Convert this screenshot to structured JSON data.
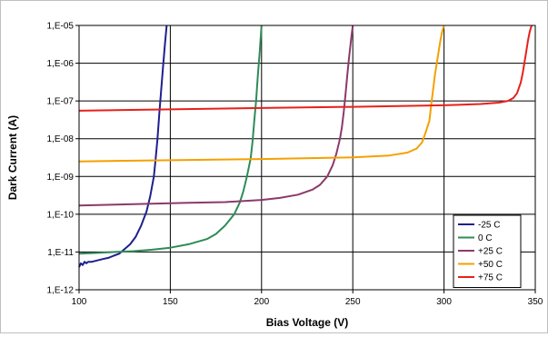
{
  "chart_data": {
    "type": "line",
    "title": "",
    "xlabel": "Bias Voltage (V)",
    "ylabel": "Dark Current (A)",
    "xlim": [
      100,
      350
    ],
    "ylim": [
      1e-12,
      1e-05
    ],
    "y_scale": "log",
    "grid": true,
    "legend_position": "bottom-right",
    "x_ticks": [
      "100",
      "150",
      "200",
      "250",
      "300",
      "350"
    ],
    "x_tick_values": [
      100,
      150,
      200,
      250,
      300,
      350
    ],
    "y_ticks": [
      "1,E-12",
      "1,E-11",
      "1,E-10",
      "1,E-09",
      "1,E-08",
      "1,E-07",
      "1,E-06",
      "1,E-05"
    ],
    "y_tick_values": [
      1e-12,
      1e-11,
      1e-10,
      1e-09,
      1e-08,
      1e-07,
      1e-06,
      1e-05
    ],
    "series": [
      {
        "name": "-25 C",
        "color": "#1f1f8f",
        "x": [
          100,
          101,
          102,
          103,
          104,
          105,
          107,
          110,
          113,
          116,
          119,
          122,
          125,
          128,
          131,
          134,
          137,
          139,
          141,
          142,
          143,
          144,
          145,
          146,
          147,
          148
        ],
        "y": [
          4e-12,
          5e-12,
          4.5e-12,
          5.5e-12,
          5e-12,
          5.5e-12,
          5.5e-12,
          6e-12,
          6.5e-12,
          7e-12,
          8e-12,
          9e-12,
          1.2e-11,
          1.6e-11,
          2.5e-11,
          5e-11,
          1.2e-10,
          3e-10,
          1e-09,
          3e-09,
          1e-08,
          5e-08,
          2e-07,
          8e-07,
          3e-06,
          1e-05
        ]
      },
      {
        "name": "0 C",
        "color": "#2e8b57",
        "x": [
          100,
          110,
          120,
          130,
          140,
          150,
          160,
          170,
          175,
          180,
          185,
          188,
          190,
          192,
          194,
          195,
          196,
          197,
          198,
          199,
          200
        ],
        "y": [
          9e-12,
          9.5e-12,
          1e-11,
          1.05e-11,
          1.15e-11,
          1.3e-11,
          1.6e-11,
          2.2e-11,
          3e-11,
          5e-11,
          1e-10,
          2e-10,
          4e-10,
          1e-09,
          3e-09,
          8e-09,
          3e-08,
          1e-07,
          5e-07,
          2e-06,
          1e-05
        ]
      },
      {
        "name": "+25 C",
        "color": "#8b3a6b",
        "x": [
          100,
          120,
          140,
          160,
          180,
          200,
          210,
          220,
          228,
          232,
          236,
          239,
          241,
          243,
          244,
          245,
          246,
          247,
          248,
          249,
          250
        ],
        "y": [
          1.7e-10,
          1.8e-10,
          1.9e-10,
          2e-10,
          2.1e-10,
          2.4e-10,
          2.7e-10,
          3.3e-10,
          4.5e-10,
          6e-10,
          1e-09,
          2e-09,
          4e-09,
          1e-08,
          2e-08,
          5e-08,
          1.5e-07,
          5e-07,
          1.5e-06,
          4e-06,
          1e-05
        ]
      },
      {
        "name": "+50 C",
        "color": "#f5a000",
        "x": [
          100,
          150,
          200,
          250,
          270,
          280,
          285,
          288,
          290,
          292,
          293,
          294,
          295,
          296,
          297,
          298,
          299,
          300
        ],
        "y": [
          2.5e-09,
          2.7e-09,
          2.9e-09,
          3.2e-09,
          3.6e-09,
          4.3e-09,
          5.5e-09,
          8e-09,
          1.5e-08,
          3e-08,
          8e-08,
          2e-07,
          5e-07,
          1e-06,
          2e-06,
          4e-06,
          7e-06,
          1e-05
        ]
      },
      {
        "name": "+75 C",
        "color": "#e8201a",
        "x": [
          100,
          150,
          200,
          250,
          300,
          320,
          330,
          335,
          338,
          340,
          342,
          343,
          344,
          345,
          346,
          347,
          348
        ],
        "y": [
          5.5e-08,
          6e-08,
          6.5e-08,
          7e-08,
          7.7e-08,
          8.3e-08,
          9e-08,
          1e-07,
          1.2e-07,
          1.6e-07,
          3e-07,
          5e-07,
          1e-06,
          2e-06,
          4e-06,
          7e-06,
          1e-05
        ]
      }
    ]
  }
}
